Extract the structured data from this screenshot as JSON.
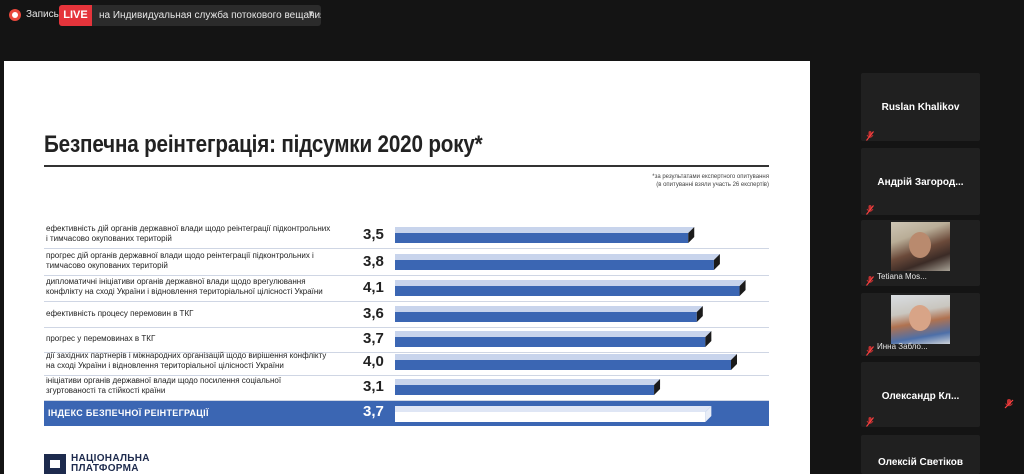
{
  "toolbar": {
    "record_label": "Запись",
    "live_badge": "LIVE",
    "live_target": "на Индивидуальная служба потокового вещания",
    "record_icon": "record-icon",
    "dropdown_icon": "chevron-down-icon"
  },
  "slide": {
    "title": "Безпечна реінтеграція: підсумки 2020 року*",
    "footnote_line1": "*за результатами експертного опитування",
    "footnote_line2": "(в опитуванні взяли участь 26 експертів)",
    "logo_line1": "НАЦІОНАЛЬНА",
    "logo_line2": "ПЛАТФОРМА",
    "colors": {
      "bar": "#3b66b3",
      "bar_light": "#c8d4ec",
      "bar_dark": "#1b1b1b",
      "band": "#3b66b3"
    }
  },
  "chart_data": {
    "type": "bar",
    "orientation": "horizontal",
    "categories": [
      "ефективність дій органів державної влади щодо реінтеграції підконтрольних і тимчасово окупованих територій",
      "прогрес дій органів державної влади щодо реінтеграції підконтрольних і тимчасово окупованих територій",
      "дипломатичні ініціативи органів державної влади щодо врегулювання конфлікту на сході України і відновлення територіальної цілісності України",
      "ефективність процесу перемовин в ТКГ",
      "прогрес у перемовинах в ТКГ",
      "дії західних партнерів і міжнародних організацій щодо вирішення конфлікту на сході України і відновлення територіальної цілісності України",
      "ініціативи органів державної влади щодо посилення соціальної згуртованості та стійкості країни",
      "ІНДЕКС БЕЗПЕЧНОЇ РЕІНТЕГРАЦІЇ"
    ],
    "label_lines": [
      [
        "ефективність дій органів державної влади щодо реінтеграції підконтрольних",
        "і тимчасово окупованих територій"
      ],
      [
        "прогрес дій органів державної влади щодо реінтеграції підконтрольних і",
        "тимчасово окупованих територій"
      ],
      [
        "дипломатичні ініціативи органів державної влади щодо врегулювання",
        "конфлікту на сході України і відновлення територіальної цілісності України"
      ],
      [
        "ефективність процесу перемовин в ТКГ"
      ],
      [
        "прогрес у перемовинах в ТКГ"
      ],
      [
        "дії західних партнерів і міжнародних організацій щодо вирішення конфлікту",
        "на сході України і відновлення територіальної цілісності України"
      ],
      [
        "ініціативи органів державної влади щодо посилення соціальної",
        "згуртованості та стійкості країни"
      ]
    ],
    "values": [
      3.5,
      3.8,
      4.1,
      3.6,
      3.7,
      4.0,
      3.1,
      3.7
    ],
    "value_labels": [
      "3,5",
      "3,8",
      "4,1",
      "3,6",
      "3,7",
      "4,0",
      "3,1",
      "3,7"
    ],
    "highlight_index": 7,
    "xlim": [
      0,
      5
    ]
  },
  "participants": [
    {
      "name": "Ruslan Khalikov",
      "muted": true,
      "video": false
    },
    {
      "name": "Андрій  Загород...",
      "muted": true,
      "video": false
    },
    {
      "name": "Tetiana Mos...",
      "muted": true,
      "video": true
    },
    {
      "name": "Инна Забло...",
      "muted": true,
      "video": true
    },
    {
      "name": "Олександр  Кл...",
      "muted": true,
      "video": false
    },
    {
      "name": "Олексій Светіков",
      "muted": false,
      "video": false
    }
  ],
  "icons": {
    "muted": "mic-muted-icon",
    "side": "mic-muted-icon"
  }
}
